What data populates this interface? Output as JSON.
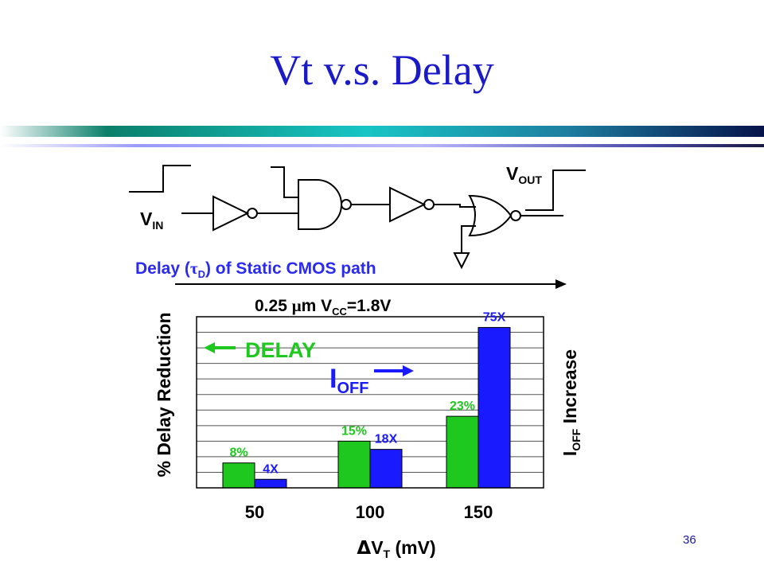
{
  "slide": {
    "title": "Vt  v.s. Delay",
    "number": "36"
  },
  "circuit": {
    "vin": "V",
    "vin_sub": "IN",
    "vout": "V",
    "vout_sub": "OUT",
    "caption_prefix": "Delay (",
    "caption_tau": "τ",
    "caption_tau_sub": "D",
    "caption_suffix": ") of Static CMOS path"
  },
  "condition": {
    "prefix": "0.25 ",
    "mu": "μ",
    "unit": "m V",
    "sub": "CC",
    "value": "=1.8V"
  },
  "colors": {
    "delay": "#1ec81e",
    "ioff": "#1a1aff",
    "title": "#1a1ac8",
    "caption": "#2a2af0"
  },
  "chart_data": {
    "type": "bar",
    "categories": [
      "50",
      "100",
      "150"
    ],
    "series": [
      {
        "name": "DELAY",
        "values": [
          8,
          15,
          23
        ],
        "labels": [
          "8%",
          "15%",
          "23%"
        ]
      },
      {
        "name": "I",
        "name_sub": "OFF",
        "values": [
          4,
          18,
          75
        ],
        "labels": [
          "4X",
          "18X",
          "75X"
        ]
      }
    ],
    "delay_ylim": [
      0,
      55
    ],
    "ioff_ylim": [
      0,
      80
    ],
    "grid": true,
    "xlabel": {
      "delta": "Δ",
      "v": "V",
      "sub": "T",
      "unit": " (mV)"
    },
    "ylabel_left": "% Delay Reduction",
    "ylabel_right": {
      "i": "I",
      "sub": "OFF",
      "rest": " Increase"
    },
    "annotations": {
      "delay_label": "DELAY",
      "ioff_label": "I",
      "ioff_sub": "OFF"
    }
  }
}
